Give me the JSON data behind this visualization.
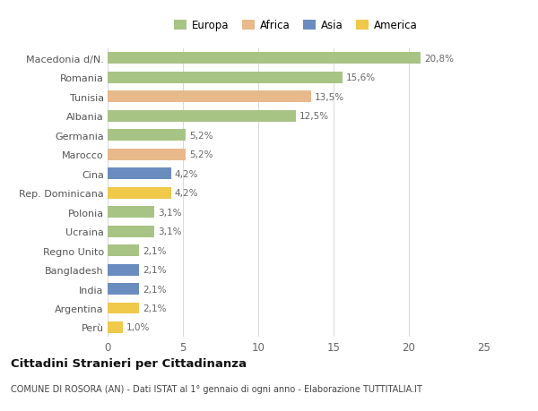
{
  "countries": [
    "Macedonia d/N.",
    "Romania",
    "Tunisia",
    "Albania",
    "Germania",
    "Marocco",
    "Cina",
    "Rep. Dominicana",
    "Polonia",
    "Ucraina",
    "Regno Unito",
    "Bangladesh",
    "India",
    "Argentina",
    "Perù"
  ],
  "values": [
    20.8,
    15.6,
    13.5,
    12.5,
    5.2,
    5.2,
    4.2,
    4.2,
    3.1,
    3.1,
    2.1,
    2.1,
    2.1,
    2.1,
    1.0
  ],
  "continents": [
    "Europa",
    "Europa",
    "Africa",
    "Europa",
    "Europa",
    "Africa",
    "Asia",
    "America",
    "Europa",
    "Europa",
    "Europa",
    "Asia",
    "Asia",
    "America",
    "America"
  ],
  "labels": [
    "20,8%",
    "15,6%",
    "13,5%",
    "12,5%",
    "5,2%",
    "5,2%",
    "4,2%",
    "4,2%",
    "3,1%",
    "3,1%",
    "2,1%",
    "2,1%",
    "2,1%",
    "2,1%",
    "1,0%"
  ],
  "colors": {
    "Europa": "#a8c484",
    "Africa": "#e8b98a",
    "Asia": "#6b8cbf",
    "America": "#f0c84a"
  },
  "xlim": [
    0,
    25
  ],
  "xticks": [
    0,
    5,
    10,
    15,
    20,
    25
  ],
  "title": "Cittadini Stranieri per Cittadinanza",
  "subtitle": "COMUNE DI ROSORA (AN) - Dati ISTAT al 1° gennaio di ogni anno - Elaborazione TUTTITALIA.IT",
  "background_color": "#ffffff",
  "bar_height": 0.6,
  "legend_order": [
    "Europa",
    "Africa",
    "Asia",
    "America"
  ]
}
